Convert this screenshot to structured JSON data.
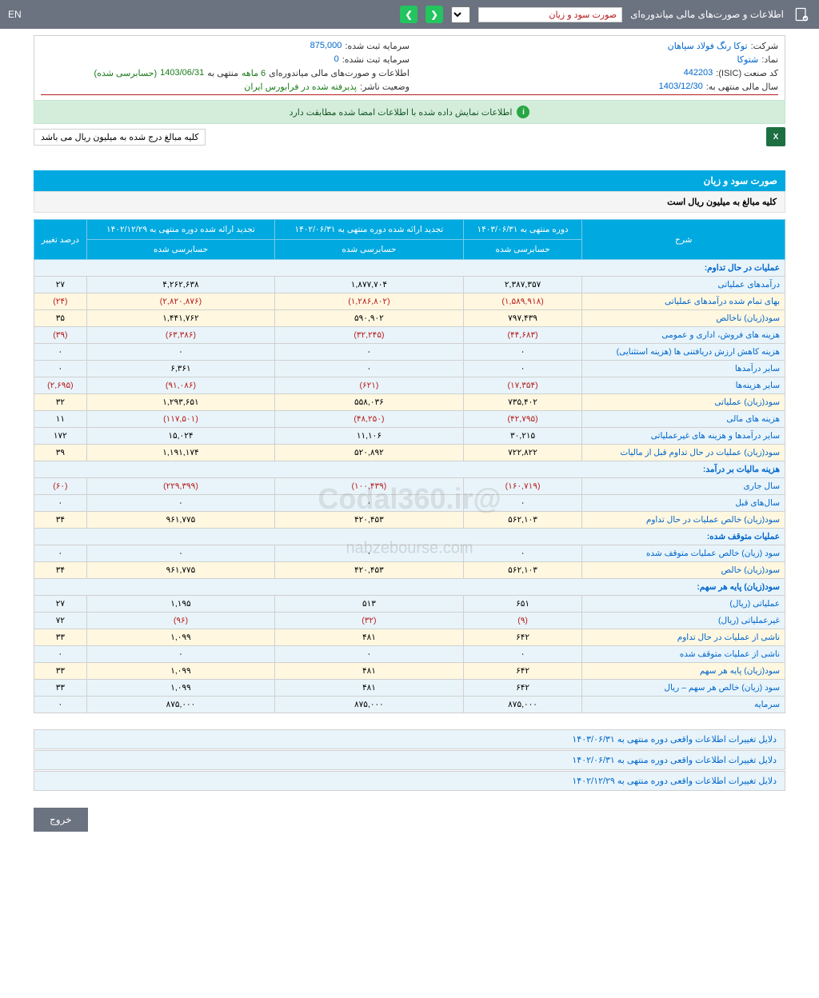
{
  "topbar": {
    "title": "اطلاعات و صورت‌های مالی میاندوره‌ای",
    "dropdown": "صورت سود و زیان",
    "lang": "EN"
  },
  "info": {
    "company_label": "شرکت:",
    "company": "توکا رنگ فولاد سپاهان",
    "capital_reg_label": "سرمایه ثبت شده:",
    "capital_reg": "875,000",
    "symbol_label": "نماد:",
    "symbol": "شتوکا",
    "capital_unreg_label": "سرمایه ثبت نشده:",
    "capital_unreg": "0",
    "isic_label": "کد صنعت (ISIC):",
    "isic": "442203",
    "report_label": "اطلاعات و صورت‌های مالی میاندوره‌ای",
    "period": "6 ماهه",
    "period_end_label": "منتهی به",
    "period_end": "1403/06/31",
    "audited": "(حسابرسی شده)",
    "fiscal_label": "سال مالی منتهی به:",
    "fiscal": "1403/12/30",
    "status_label": "وضعیت ناشر:",
    "status": "پذیرفته شده در فرابورس ایران"
  },
  "alert": "اطلاعات نمایش داده شده با اطلاعات امضا شده مطابقت دارد",
  "note": "کلیه مبالغ درج شده به میلیون ریال می باشد",
  "section": {
    "title": "صورت سود و زیان",
    "subtitle": "کلیه مبالغ به میلیون ریال است"
  },
  "columns": {
    "desc": "شرح",
    "c1_top": "دوره منتهی به ۱۴۰۳/۰۶/۳۱",
    "c1_sub": "حسابرسی شده",
    "c2_top": "تجدید ارائه شده دوره منتهی به ۱۴۰۲/۰۶/۳۱",
    "c2_sub": "حسابرسی شده",
    "c3_top": "تجدید ارائه شده دوره منتهی به ۱۴۰۲/۱۲/۲۹",
    "c3_sub": "حسابرسی شده",
    "c4": "درصد تغییر"
  },
  "rows": [
    {
      "type": "header",
      "desc": "عملیات در حال تداوم:"
    },
    {
      "type": "even",
      "desc": "درآمدهای عملیاتی",
      "v1": "۲,۳۸۷,۳۵۷",
      "v2": "۱,۸۷۷,۷۰۴",
      "v3": "۴,۲۶۲,۶۳۸",
      "v4": "۲۷"
    },
    {
      "type": "odd",
      "desc": "بهای تمام شده درآمدهای عملیاتی",
      "v1": "(۱,۵۸۹,۹۱۸)",
      "v2": "(۱,۲۸۶,۸۰۲)",
      "v3": "(۲,۸۲۰,۸۷۶)",
      "v4": "(۲۴)",
      "neg": true
    },
    {
      "type": "odd",
      "desc": "سود(زیان) ناخالص",
      "v1": "۷۹۷,۴۳۹",
      "v2": "۵۹۰,۹۰۲",
      "v3": "۱,۴۴۱,۷۶۲",
      "v4": "۳۵"
    },
    {
      "type": "even",
      "desc": "هزینه های فروش، اداری و عمومی",
      "v1": "(۴۴,۶۸۳)",
      "v2": "(۳۲,۲۴۵)",
      "v3": "(۶۳,۳۸۶)",
      "v4": "(۳۹)",
      "neg": true
    },
    {
      "type": "even",
      "desc": "هزینه کاهش ارزش دریافتنی ها (هزینه استثنایی)",
      "v1": "۰",
      "v2": "۰",
      "v3": "۰",
      "v4": "۰"
    },
    {
      "type": "even",
      "desc": "سایر درآمدها",
      "v1": "۰",
      "v2": "۰",
      "v3": "۶,۳۶۱",
      "v4": "۰"
    },
    {
      "type": "even",
      "desc": "سایر هزینه‌ها",
      "v1": "(۱۷,۳۵۴)",
      "v2": "(۶۲۱)",
      "v3": "(۹۱,۰۸۶)",
      "v4": "(۲,۶۹۵)",
      "neg": true
    },
    {
      "type": "odd",
      "desc": "سود(زیان) عملیاتی",
      "v1": "۷۳۵,۴۰۲",
      "v2": "۵۵۸,۰۳۶",
      "v3": "۱,۲۹۳,۶۵۱",
      "v4": "۳۲"
    },
    {
      "type": "even",
      "desc": "هزینه های مالی",
      "v1": "(۴۲,۷۹۵)",
      "v2": "(۴۸,۲۵۰)",
      "v3": "(۱۱۷,۵۰۱)",
      "v4": "۱۱",
      "neg1": true
    },
    {
      "type": "even",
      "desc": "سایر درآمدها و هزینه های غیرعملیاتی",
      "v1": "۳۰,۲۱۵",
      "v2": "۱۱,۱۰۶",
      "v3": "۱۵,۰۲۴",
      "v4": "۱۷۲"
    },
    {
      "type": "odd",
      "desc": "سود(زیان) عملیات در حال تداوم قبل از مالیات",
      "v1": "۷۲۲,۸۲۲",
      "v2": "۵۲۰,۸۹۲",
      "v3": "۱,۱۹۱,۱۷۴",
      "v4": "۳۹"
    },
    {
      "type": "header",
      "desc": "هزینه مالیات بر درآمد:"
    },
    {
      "type": "even",
      "desc": "سال جاری",
      "v1": "(۱۶۰,۷۱۹)",
      "v2": "(۱۰۰,۴۳۹)",
      "v3": "(۲۲۹,۳۹۹)",
      "v4": "(۶۰)",
      "neg": true
    },
    {
      "type": "even",
      "desc": "سال‌های قبل",
      "v1": "۰",
      "v2": "۰",
      "v3": "۰",
      "v4": "۰"
    },
    {
      "type": "odd",
      "desc": "سود(زیان) خالص عملیات در حال تداوم",
      "v1": "۵۶۲,۱۰۳",
      "v2": "۴۲۰,۴۵۳",
      "v3": "۹۶۱,۷۷۵",
      "v4": "۳۴"
    },
    {
      "type": "header",
      "desc": "عملیات متوقف شده:"
    },
    {
      "type": "even",
      "desc": "سود (زیان) خالص عملیات متوقف شده",
      "v1": "۰",
      "v2": "۰",
      "v3": "۰",
      "v4": "۰"
    },
    {
      "type": "odd",
      "desc": "سود(زیان) خالص",
      "v1": "۵۶۲,۱۰۳",
      "v2": "۴۲۰,۴۵۳",
      "v3": "۹۶۱,۷۷۵",
      "v4": "۳۴"
    },
    {
      "type": "header",
      "desc": "سود(زیان) پایه هر سهم:"
    },
    {
      "type": "even",
      "desc": "عملیاتی (ریال)",
      "v1": "۶۵۱",
      "v2": "۵۱۳",
      "v3": "۱,۱۹۵",
      "v4": "۲۷"
    },
    {
      "type": "even",
      "desc": "غیرعملیاتی (ریال)",
      "v1": "(۹)",
      "v2": "(۳۲)",
      "v3": "(۹۶)",
      "v4": "۷۲",
      "neg1": true
    },
    {
      "type": "odd",
      "desc": "ناشی از عملیات در حال تداوم",
      "v1": "۶۴۲",
      "v2": "۴۸۱",
      "v3": "۱,۰۹۹",
      "v4": "۳۳"
    },
    {
      "type": "even",
      "desc": "ناشی از عملیات متوقف شده",
      "v1": "۰",
      "v2": "۰",
      "v3": "۰",
      "v4": "۰"
    },
    {
      "type": "odd",
      "desc": "سود(زیان) پایه هر سهم",
      "v1": "۶۴۲",
      "v2": "۴۸۱",
      "v3": "۱,۰۹۹",
      "v4": "۳۳"
    },
    {
      "type": "even",
      "desc": "سود (زیان) خالص هر سهم – ریال",
      "v1": "۶۴۲",
      "v2": "۴۸۱",
      "v3": "۱,۰۹۹",
      "v4": "۳۳"
    },
    {
      "type": "even",
      "desc": "سرمایه",
      "v1": "۸۷۵,۰۰۰",
      "v2": "۸۷۵,۰۰۰",
      "v3": "۸۷۵,۰۰۰",
      "v4": "۰"
    }
  ],
  "reasons": [
    "دلایل تغییرات اطلاعات واقعی دوره منتهی به ۱۴۰۳/۰۶/۳۱",
    "دلایل تغییرات اطلاعات واقعی دوره منتهی به ۱۴۰۲/۰۶/۳۱",
    "دلایل تغییرات اطلاعات واقعی دوره منتهی به ۱۴۰۲/۱۲/۲۹"
  ],
  "exit": "خروج",
  "watermark": "@Codal360.ir",
  "watermark2": "nabzebourse.com"
}
